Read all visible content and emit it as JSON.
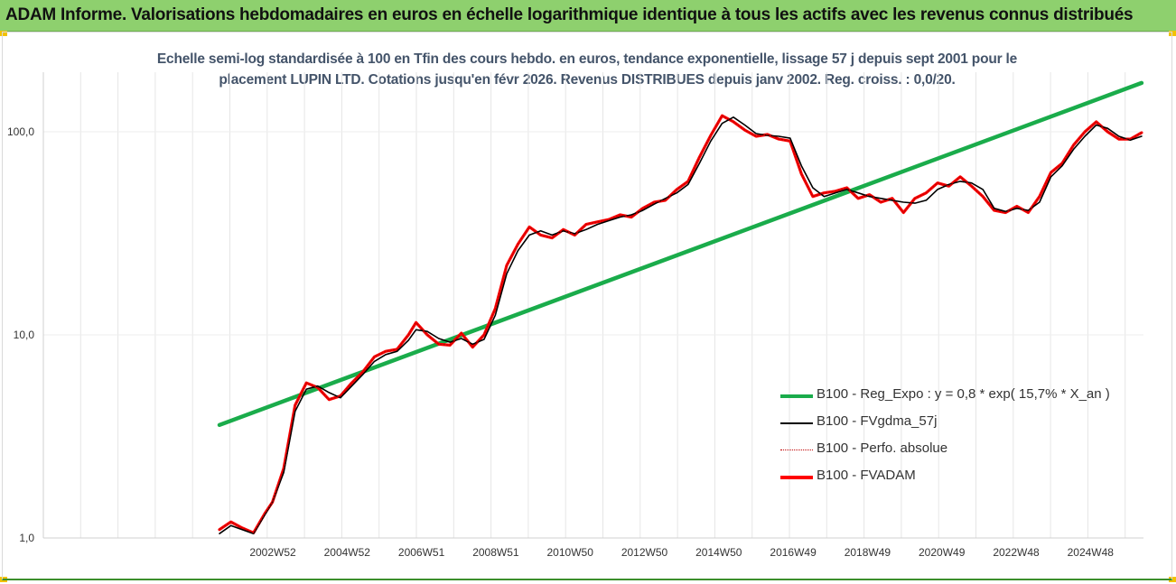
{
  "banner": {
    "title": "ADAM Informe. Valorisations hebdomadaires en euros en échelle logarithmique identique à tous les actifs avec les revenus connus distribués"
  },
  "colors": {
    "banner": "#8ed06e",
    "regression": "#1aac4b",
    "fvadam": "#ff0000",
    "fvgdma": "#000000",
    "perfo": "#c00000"
  },
  "chart_data": {
    "type": "line",
    "title_lines": [
      "Echelle semi-log standardisée à 100 en Tfin des cours hebdo. en euros, tendance exponentielle, lissage 57 j depuis sept 2001 pour le",
      "placement LUPIN LTD. Cotations jusqu'en févr 2026. Revenus DISTRIBUES depuis janv 2002. Reg. croiss. : 0,0/20."
    ],
    "y_scale": "log",
    "ylim": [
      1,
      200
    ],
    "y_ticks": [
      "1,0",
      "10,0",
      "100,0"
    ],
    "x_tick_labels": [
      "2002W52",
      "2004W52",
      "2006W51",
      "2008W51",
      "2010W50",
      "2012W50",
      "2014W50",
      "2016W49",
      "2018W49",
      "2020W49",
      "2022W48",
      "2024W48"
    ],
    "x_range": [
      2001.7,
      2026.15
    ],
    "grid": "vertical",
    "legend_position": "bottom-right",
    "x": [
      2001.7,
      2002.0,
      2002.3,
      2002.6,
      2002.9,
      2003.1,
      2003.4,
      2003.7,
      2004.0,
      2004.3,
      2004.6,
      2004.9,
      2005.2,
      2005.5,
      2005.8,
      2006.1,
      2006.4,
      2006.7,
      2006.9,
      2007.2,
      2007.5,
      2007.8,
      2008.1,
      2008.4,
      2008.7,
      2009.0,
      2009.3,
      2009.6,
      2009.9,
      2010.2,
      2010.5,
      2010.8,
      2011.1,
      2011.4,
      2011.7,
      2012.0,
      2012.3,
      2012.6,
      2012.9,
      2013.2,
      2013.5,
      2013.8,
      2014.1,
      2014.4,
      2014.7,
      2015.0,
      2015.3,
      2015.6,
      2015.9,
      2016.2,
      2016.5,
      2016.8,
      2017.1,
      2017.4,
      2017.7,
      2018.0,
      2018.3,
      2018.6,
      2018.9,
      2019.2,
      2019.5,
      2019.8,
      2020.1,
      2020.4,
      2020.7,
      2021.0,
      2021.3,
      2021.6,
      2021.9,
      2022.2,
      2022.5,
      2022.8,
      2023.1,
      2023.4,
      2023.7,
      2024.0,
      2024.3,
      2024.6,
      2024.9,
      2025.2,
      2025.5,
      2025.8,
      2026.1
    ],
    "series": [
      {
        "name": "B100 - Reg_Expo : y = 0,8 * exp( 15,7% *  X_an )",
        "style": "green-thick",
        "x": [
          2001.7,
          2026.1
        ],
        "values": [
          3.6,
          174
        ]
      },
      {
        "name": "B100 - FVgdma_57j",
        "style": "black-thin",
        "values": [
          1.05,
          1.15,
          1.1,
          1.05,
          1.3,
          1.5,
          2.1,
          4.2,
          5.4,
          5.6,
          5.2,
          4.9,
          5.6,
          6.4,
          7.4,
          8.0,
          8.3,
          9.4,
          10.6,
          10.4,
          9.6,
          9.2,
          9.6,
          9.0,
          9.5,
          12.5,
          20.0,
          26.0,
          31.0,
          32.5,
          31.0,
          32.5,
          31.5,
          33.0,
          35.0,
          36.5,
          38.0,
          39.0,
          41.0,
          44.0,
          47.0,
          50.0,
          55.0,
          70.0,
          90.0,
          110.0,
          118.0,
          108.0,
          98.0,
          96.0,
          95.0,
          93.0,
          68.0,
          53.0,
          48.0,
          50.0,
          52.0,
          50.0,
          48.0,
          47.0,
          46.0,
          45.0,
          44.5,
          46.0,
          52.0,
          55.0,
          57.0,
          56.0,
          52.0,
          42.0,
          40.5,
          42.0,
          41.0,
          45.0,
          60.0,
          68.0,
          82.0,
          95.0,
          108.0,
          104.0,
          95.0,
          91.0,
          95.0
        ]
      },
      {
        "name": "B100 - Perfo. absolue",
        "style": "darkred-dotted",
        "values": [
          1.1,
          1.2,
          1.12,
          1.06,
          1.32,
          1.5,
          2.2,
          4.5,
          5.8,
          5.5,
          4.8,
          5.0,
          5.8,
          6.6,
          7.8,
          8.3,
          8.5,
          10.0,
          11.5,
          10.0,
          9.0,
          8.9,
          10.2,
          8.7,
          10.0,
          13.5,
          22.0,
          28.0,
          34.0,
          31.0,
          30.0,
          33.0,
          31.0,
          35.0,
          36.0,
          37.0,
          39.0,
          38.0,
          42.0,
          45.0,
          46.0,
          52.0,
          57.0,
          75.0,
          96.0,
          120.0,
          112.0,
          102.0,
          95.0,
          97.0,
          92.0,
          90.0,
          62.0,
          48.0,
          50.0,
          51.0,
          53.0,
          47.0,
          49.0,
          45.0,
          47.0,
          40.0,
          47.0,
          50.0,
          56.0,
          54.0,
          60.0,
          54.0,
          48.0,
          41.0,
          40.0,
          43.0,
          40.0,
          48.0,
          63.0,
          70.0,
          86.0,
          100.0,
          112.0,
          100.0,
          92.0,
          92.0,
          99.0
        ]
      },
      {
        "name": "B100 - FVADAM",
        "style": "red-thick",
        "values": [
          1.1,
          1.2,
          1.12,
          1.06,
          1.32,
          1.5,
          2.2,
          4.5,
          5.8,
          5.5,
          4.8,
          5.0,
          5.8,
          6.6,
          7.8,
          8.3,
          8.5,
          10.0,
          11.5,
          10.0,
          9.0,
          8.9,
          10.2,
          8.7,
          10.0,
          13.5,
          22.0,
          28.0,
          34.0,
          31.0,
          30.0,
          33.0,
          31.0,
          35.0,
          36.0,
          37.0,
          39.0,
          38.0,
          42.0,
          45.0,
          46.0,
          52.0,
          57.0,
          75.0,
          96.0,
          120.0,
          112.0,
          102.0,
          95.0,
          97.0,
          92.0,
          90.0,
          62.0,
          48.0,
          50.0,
          51.0,
          53.0,
          47.0,
          49.0,
          45.0,
          47.0,
          40.0,
          47.0,
          50.0,
          56.0,
          54.0,
          60.0,
          54.0,
          48.0,
          41.0,
          40.0,
          43.0,
          40.0,
          48.0,
          63.0,
          70.0,
          86.0,
          100.0,
          112.0,
          100.0,
          92.0,
          92.0,
          99.0
        ]
      }
    ]
  }
}
